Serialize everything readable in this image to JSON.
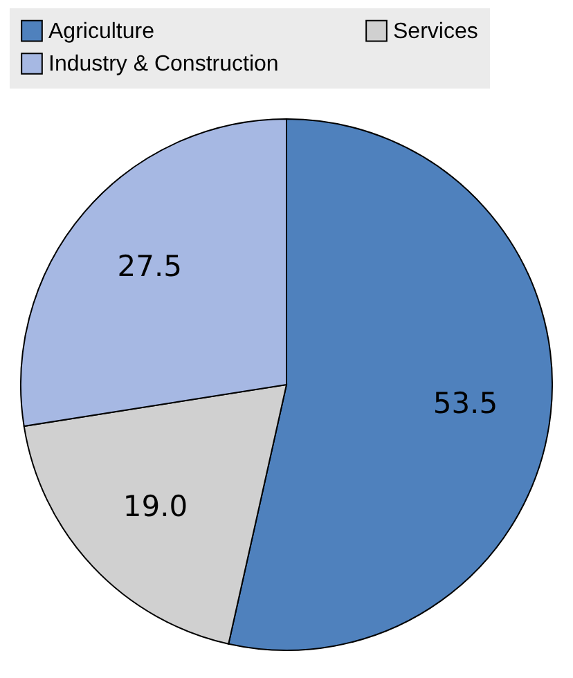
{
  "chart_data": {
    "type": "pie",
    "categories": [
      "Agriculture",
      "Services",
      "Industry & Construction"
    ],
    "values": [
      53.5,
      19.0,
      27.5
    ],
    "value_labels": [
      "53.5",
      "19.0",
      "27.5"
    ],
    "colors": [
      "#4f81bd",
      "#d0d0d0",
      "#a6b8e3"
    ],
    "legend": "top"
  }
}
